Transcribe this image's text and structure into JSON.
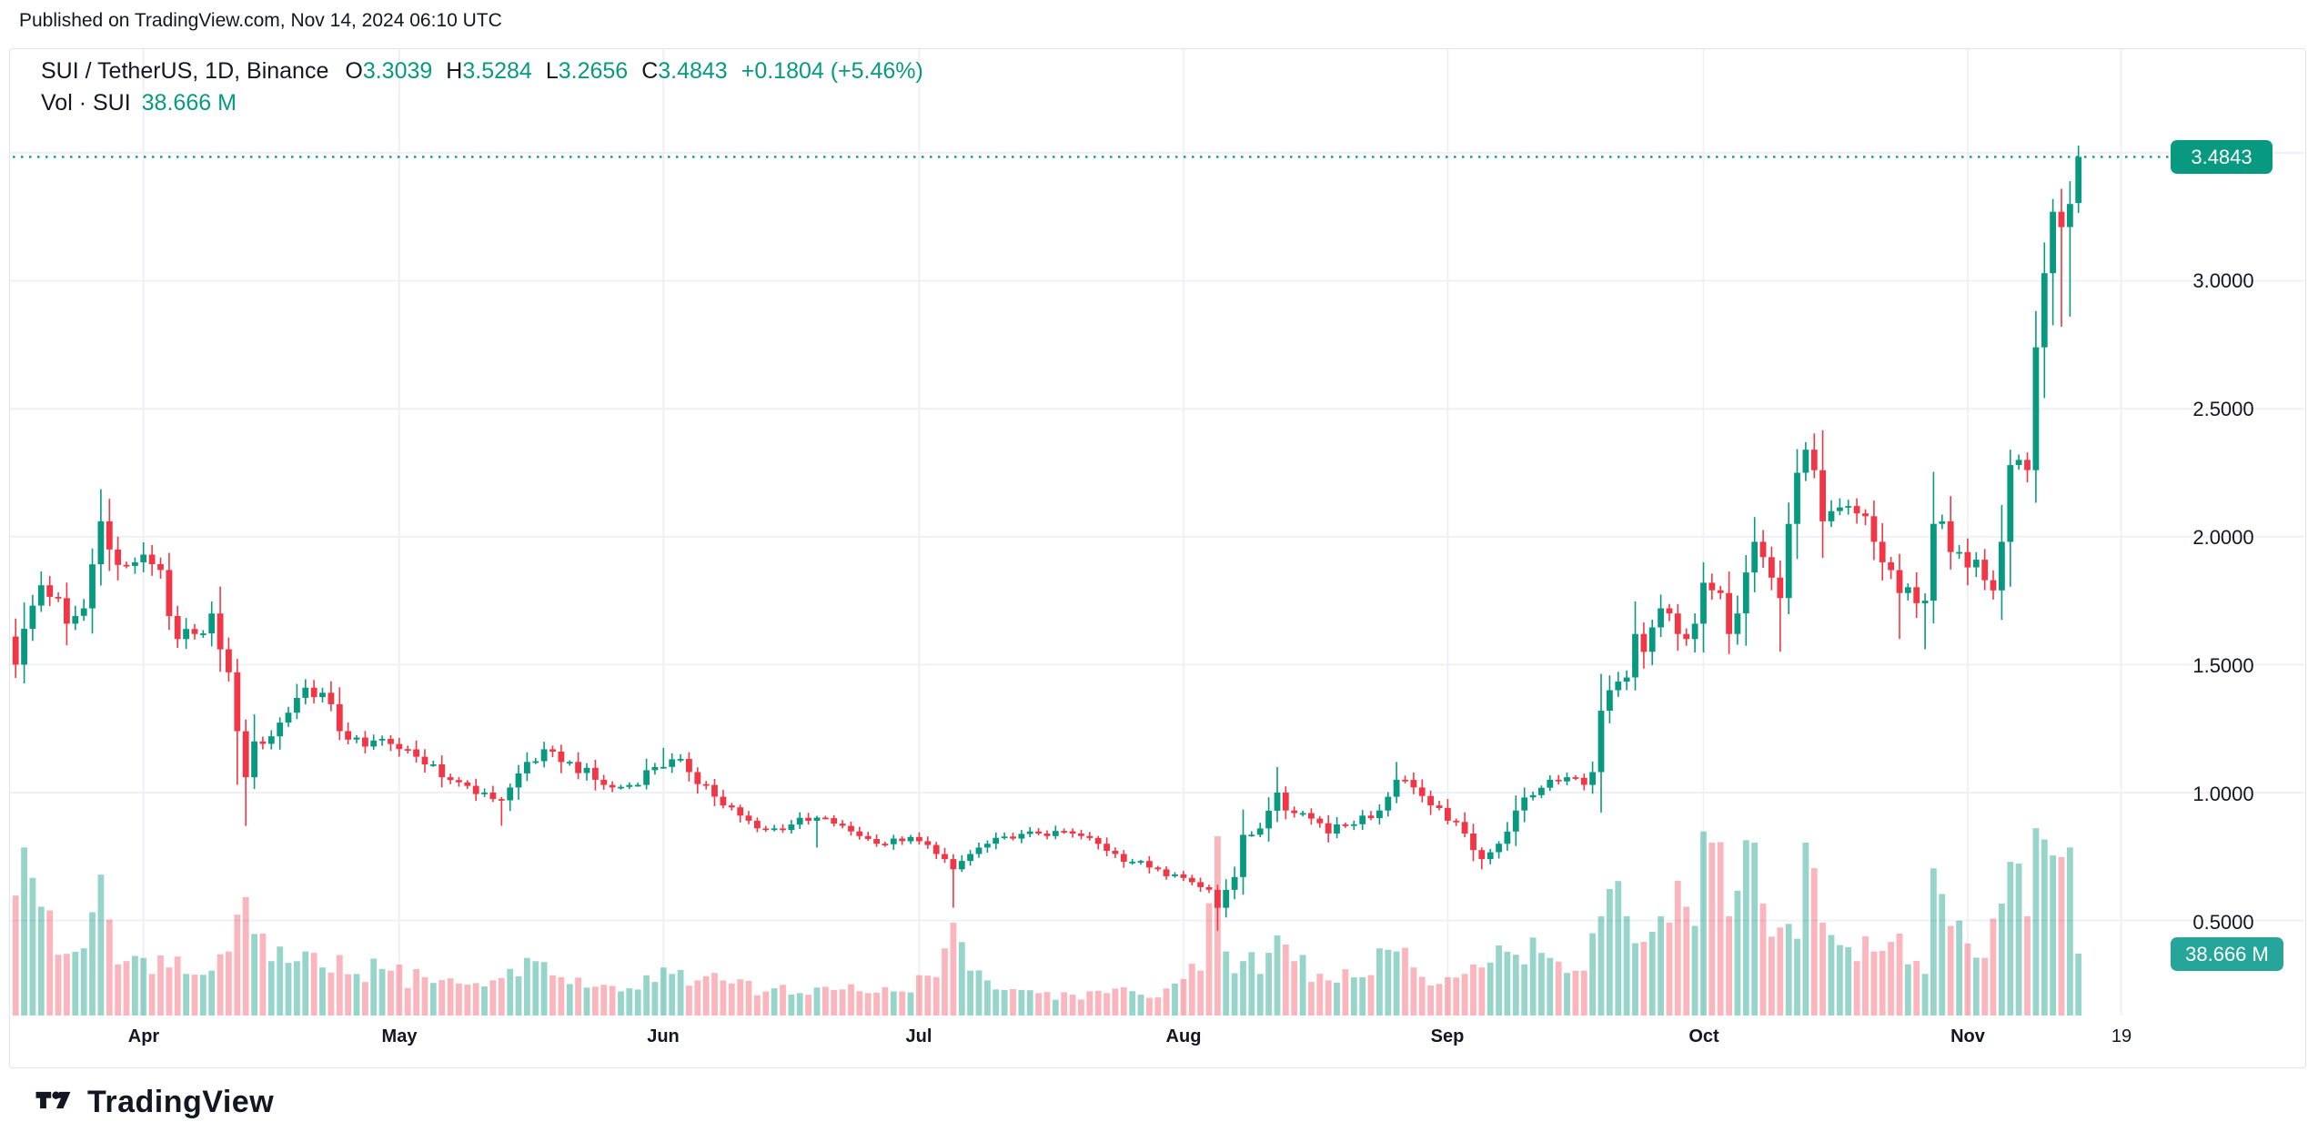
{
  "published": "Published on TradingView.com, Nov 14, 2024 06:10 UTC",
  "legend": {
    "symbol": "SUI / TetherUS, 1D, Binance",
    "o_label": "O",
    "o": "3.3039",
    "h_label": "H",
    "h": "3.5284",
    "l_label": "L",
    "l": "3.2656",
    "c_label": "C",
    "c": "3.4843",
    "change": "+0.1804 (+5.46%)"
  },
  "volume_row": {
    "label": "Vol · SUI",
    "value": "38.666 M"
  },
  "price_badge": "3.4843",
  "volume_badge": "38.666 M",
  "footer": {
    "logo_text": "TradingView"
  },
  "colors": {
    "up": "#089981",
    "down": "#f23645",
    "grid": "#eef0f6",
    "border": "#e0e3eb",
    "text": "#131722",
    "badge_price": "#089981",
    "badge_volume": "#26a69a",
    "dotted_line": "#089981",
    "vol_up_opacity": 0.42,
    "vol_down_opacity": 0.36
  },
  "chart_data": {
    "type": "candlestick",
    "title": "SUI / TetherUS, 1D, Binance",
    "timeframe": "1D",
    "x_range": "Mar 17 2024 - Nov 14 2024, daily candles",
    "first_open": 1.61,
    "last_candle": {
      "open": 3.3039,
      "high": 3.5284,
      "low": 3.2656,
      "close": 3.4843,
      "change": "+0.1804 (+5.46%)",
      "volume_m": 38.666
    },
    "y_axis": {
      "ticks": [
        {
          "label": "3.0000",
          "price": 3.0
        },
        {
          "label": "2.5000",
          "price": 2.5
        },
        {
          "label": "2.0000",
          "price": 2.0
        },
        {
          "label": "1.5000",
          "price": 1.5
        },
        {
          "label": "1.0000",
          "price": 1.0
        },
        {
          "label": "0.5000",
          "price": 0.5
        }
      ],
      "gridlines": [
        3.5,
        3.0,
        2.5,
        2.0,
        1.5,
        1.0,
        0.5
      ],
      "range": [
        0.4,
        3.6
      ]
    },
    "x_axis": {
      "ticks": [
        {
          "label": "Apr",
          "day": 15
        },
        {
          "label": "May",
          "day": 45
        },
        {
          "label": "Jun",
          "day": 76
        },
        {
          "label": "Jul",
          "day": 106
        },
        {
          "label": "Aug",
          "day": 137
        },
        {
          "label": "Sep",
          "day": 168
        },
        {
          "label": "Oct",
          "day": 198
        },
        {
          "label": "Nov",
          "day": 229
        },
        {
          "label": "19",
          "day": 247
        }
      ]
    },
    "close_anchors": [
      [
        0,
        1.5
      ],
      [
        1,
        1.64
      ],
      [
        3,
        1.81
      ],
      [
        5,
        1.76
      ],
      [
        6,
        1.66
      ],
      [
        8,
        1.72
      ],
      [
        10,
        2.06
      ],
      [
        11,
        1.95
      ],
      [
        12,
        1.89
      ],
      [
        14,
        1.9
      ],
      [
        15,
        1.93
      ],
      [
        17,
        1.87
      ],
      [
        18,
        1.69
      ],
      [
        19,
        1.6
      ],
      [
        21,
        1.62
      ],
      [
        23,
        1.7
      ],
      [
        24,
        1.56
      ],
      [
        25,
        1.47
      ],
      [
        26,
        1.24
      ],
      [
        27,
        1.06
      ],
      [
        28,
        1.2
      ],
      [
        30,
        1.22
      ],
      [
        33,
        1.37
      ],
      [
        34,
        1.41
      ],
      [
        36,
        1.39
      ],
      [
        38,
        1.24
      ],
      [
        41,
        1.18
      ],
      [
        43,
        1.21
      ],
      [
        45,
        1.17
      ],
      [
        47,
        1.14
      ],
      [
        50,
        1.06
      ],
      [
        52,
        1.04
      ],
      [
        55,
        1.0
      ],
      [
        57,
        0.97
      ],
      [
        58,
        1.02
      ],
      [
        60,
        1.12
      ],
      [
        63,
        1.16
      ],
      [
        65,
        1.12
      ],
      [
        68,
        1.05
      ],
      [
        70,
        1.02
      ],
      [
        72,
        1.03
      ],
      [
        75,
        1.1
      ],
      [
        77,
        1.13
      ],
      [
        79,
        1.08
      ],
      [
        81,
        1.03
      ],
      [
        83,
        0.95
      ],
      [
        85,
        0.91
      ],
      [
        87,
        0.86
      ],
      [
        89,
        0.86
      ],
      [
        91,
        0.875
      ],
      [
        93,
        0.89
      ],
      [
        95,
        0.9
      ],
      [
        97,
        0.87
      ],
      [
        99,
        0.83
      ],
      [
        101,
        0.8
      ],
      [
        104,
        0.81
      ],
      [
        106,
        0.81
      ],
      [
        108,
        0.76
      ],
      [
        109,
        0.74
      ],
      [
        110,
        0.7
      ],
      [
        112,
        0.76
      ],
      [
        114,
        0.8
      ],
      [
        117,
        0.82
      ],
      [
        120,
        0.84
      ],
      [
        122,
        0.85
      ],
      [
        124,
        0.84
      ],
      [
        127,
        0.8
      ],
      [
        129,
        0.76
      ],
      [
        131,
        0.73
      ],
      [
        134,
        0.7
      ],
      [
        136,
        0.68
      ],
      [
        138,
        0.65
      ],
      [
        140,
        0.62
      ],
      [
        141,
        0.55
      ],
      [
        142,
        0.62
      ],
      [
        143,
        0.67
      ],
      [
        144,
        0.835
      ],
      [
        146,
        0.86
      ],
      [
        148,
        1.0
      ],
      [
        149,
        0.93
      ],
      [
        151,
        0.92
      ],
      [
        153,
        0.88
      ],
      [
        154,
        0.84
      ],
      [
        156,
        0.87
      ],
      [
        158,
        0.91
      ],
      [
        160,
        0.93
      ],
      [
        162,
        1.05
      ],
      [
        164,
        1.02
      ],
      [
        166,
        0.95
      ],
      [
        168,
        0.89
      ],
      [
        170,
        0.84
      ],
      [
        172,
        0.74
      ],
      [
        174,
        0.8
      ],
      [
        176,
        0.93
      ],
      [
        178,
        0.99
      ],
      [
        180,
        1.05
      ],
      [
        182,
        1.06
      ],
      [
        184,
        1.03
      ],
      [
        185,
        1.08
      ],
      [
        186,
        1.32
      ],
      [
        187,
        1.4
      ],
      [
        189,
        1.45
      ],
      [
        190,
        1.62
      ],
      [
        191,
        1.55
      ],
      [
        193,
        1.72
      ],
      [
        194,
        1.7
      ],
      [
        195,
        1.62
      ],
      [
        196,
        1.6
      ],
      [
        197,
        1.66
      ],
      [
        198,
        1.82
      ],
      [
        200,
        1.78
      ],
      [
        201,
        1.62
      ],
      [
        202,
        1.7
      ],
      [
        204,
        1.98
      ],
      [
        205,
        1.92
      ],
      [
        206,
        1.84
      ],
      [
        207,
        1.76
      ],
      [
        208,
        2.05
      ],
      [
        209,
        2.25
      ],
      [
        210,
        2.34
      ],
      [
        211,
        2.26
      ],
      [
        212,
        2.06
      ],
      [
        213,
        2.1
      ],
      [
        215,
        2.12
      ],
      [
        217,
        2.08
      ],
      [
        218,
        1.98
      ],
      [
        219,
        1.9
      ],
      [
        221,
        1.78
      ],
      [
        223,
        1.74
      ],
      [
        224,
        1.75
      ],
      [
        225,
        2.05
      ],
      [
        226,
        2.06
      ],
      [
        227,
        1.94
      ],
      [
        228,
        1.94
      ],
      [
        229,
        1.88
      ],
      [
        230,
        1.91
      ],
      [
        231,
        1.83
      ],
      [
        232,
        1.79
      ],
      [
        233,
        1.98
      ],
      [
        234,
        2.28
      ],
      [
        235,
        2.3
      ],
      [
        236,
        2.26
      ],
      [
        237,
        2.74
      ],
      [
        238,
        3.03
      ],
      [
        239,
        3.27
      ],
      [
        240,
        3.21
      ],
      [
        241,
        3.3
      ],
      [
        242,
        3.4843
      ]
    ],
    "wick_overrides": {
      "26": {
        "l": 1.03
      },
      "27": {
        "l": 0.87
      },
      "57": {
        "l": 0.87
      },
      "76": {
        "h": 1.175
      },
      "94": {
        "l": 0.785
      },
      "110": {
        "l": 0.55
      },
      "141": {
        "l": 0.46
      },
      "148": {
        "h": 1.1
      },
      "162": {
        "h": 1.12
      },
      "172": {
        "l": 0.7
      },
      "198": {
        "h": 1.9
      },
      "207": {
        "l": 1.55
      },
      "210": {
        "h": 2.37
      },
      "221": {
        "l": 1.6
      },
      "224": {
        "l": 1.56
      },
      "234": {
        "h": 2.34
      },
      "238": {
        "h": 3.15
      },
      "239": {
        "h": 3.32
      },
      "240": {
        "l": 2.82,
        "h": 3.36
      },
      "241": {
        "l": 2.86
      }
    },
    "volume_anchors_m": [
      [
        0,
        75
      ],
      [
        1,
        105
      ],
      [
        2,
        86
      ],
      [
        3,
        68
      ],
      [
        5,
        38
      ],
      [
        8,
        42
      ],
      [
        10,
        88
      ],
      [
        11,
        60
      ],
      [
        13,
        34
      ],
      [
        15,
        36
      ],
      [
        18,
        30
      ],
      [
        20,
        26
      ],
      [
        23,
        28
      ],
      [
        25,
        40
      ],
      [
        26,
        63
      ],
      [
        27,
        74
      ],
      [
        28,
        51
      ],
      [
        30,
        34
      ],
      [
        34,
        40
      ],
      [
        36,
        30
      ],
      [
        40,
        26
      ],
      [
        44,
        28
      ],
      [
        48,
        24
      ],
      [
        52,
        20
      ],
      [
        56,
        22
      ],
      [
        60,
        36
      ],
      [
        64,
        24
      ],
      [
        68,
        18
      ],
      [
        72,
        17
      ],
      [
        76,
        30
      ],
      [
        80,
        22
      ],
      [
        84,
        20
      ],
      [
        88,
        15
      ],
      [
        92,
        14
      ],
      [
        96,
        16
      ],
      [
        100,
        14
      ],
      [
        104,
        15
      ],
      [
        108,
        24
      ],
      [
        110,
        58
      ],
      [
        112,
        28
      ],
      [
        116,
        16
      ],
      [
        120,
        14
      ],
      [
        124,
        13
      ],
      [
        128,
        14
      ],
      [
        132,
        13
      ],
      [
        136,
        20
      ],
      [
        139,
        28
      ],
      [
        141,
        112
      ],
      [
        142,
        40
      ],
      [
        144,
        34
      ],
      [
        146,
        26
      ],
      [
        148,
        50
      ],
      [
        150,
        34
      ],
      [
        154,
        22
      ],
      [
        158,
        24
      ],
      [
        162,
        40
      ],
      [
        164,
        30
      ],
      [
        168,
        24
      ],
      [
        172,
        30
      ],
      [
        176,
        38
      ],
      [
        180,
        36
      ],
      [
        184,
        28
      ],
      [
        186,
        62
      ],
      [
        188,
        84
      ],
      [
        189,
        62
      ],
      [
        191,
        46
      ],
      [
        193,
        62
      ],
      [
        194,
        58
      ],
      [
        196,
        68
      ],
      [
        197,
        56
      ],
      [
        198,
        115
      ],
      [
        199,
        108
      ],
      [
        201,
        62
      ],
      [
        202,
        78
      ],
      [
        204,
        108
      ],
      [
        205,
        70
      ],
      [
        207,
        55
      ],
      [
        209,
        48
      ],
      [
        210,
        108
      ],
      [
        212,
        58
      ],
      [
        214,
        44
      ],
      [
        216,
        34
      ],
      [
        218,
        40
      ],
      [
        220,
        46
      ],
      [
        222,
        32
      ],
      [
        224,
        26
      ],
      [
        225,
        92
      ],
      [
        227,
        56
      ],
      [
        229,
        45
      ],
      [
        231,
        36
      ],
      [
        233,
        70
      ],
      [
        234,
        96
      ],
      [
        236,
        62
      ],
      [
        237,
        117
      ],
      [
        238,
        110
      ],
      [
        239,
        100
      ],
      [
        240,
        99
      ],
      [
        241,
        105
      ],
      [
        242,
        38.666
      ]
    ],
    "volume_scale": {
      "badge_value_m": 38.666,
      "max_bar_m": 117
    },
    "legend_position": "top-left",
    "grid": "on"
  }
}
